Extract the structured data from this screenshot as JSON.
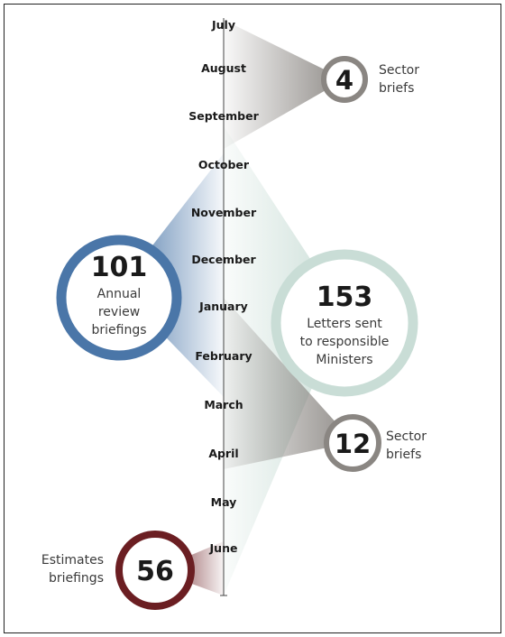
{
  "timeline": {
    "months": [
      "July",
      "August",
      "September",
      "October",
      "November",
      "December",
      "January",
      "February",
      "March",
      "April",
      "May",
      "June"
    ]
  },
  "events": {
    "sector_q1": {
      "count": "4",
      "label_lines": [
        "Sector",
        "briefs"
      ],
      "color": "#8a8682"
    },
    "annual_review": {
      "count": "101",
      "label_lines": [
        "Annual",
        "review",
        "briefings"
      ],
      "color": "#4a76a8"
    },
    "letters": {
      "count": "153",
      "label_lines": [
        "Letters sent",
        "to responsible",
        "Ministers"
      ],
      "color": "#c9ddd6"
    },
    "sector_q3": {
      "count": "12",
      "label_lines": [
        "Sector",
        "briefs"
      ],
      "color": "#8a8682"
    },
    "estimates": {
      "count": "56",
      "label_lines": [
        "Estimates",
        "briefings"
      ],
      "color": "#6b1e22"
    }
  }
}
